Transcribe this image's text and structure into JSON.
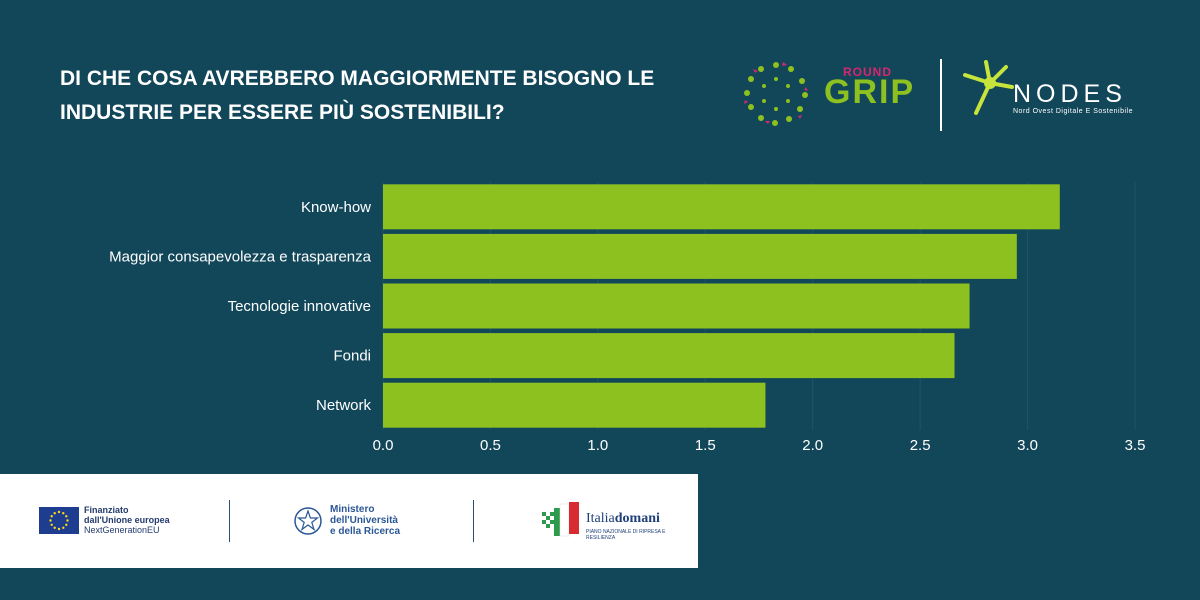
{
  "title": "Di che cosa avrebbero maggiormente bisogno le industrie per essere più sostenibili?",
  "logos": {
    "grip_round": "ROUND",
    "grip_word": "GRIP",
    "nodes_word": "NODES",
    "nodes_subtitle": "Nord Ovest Digitale E Sostenibile"
  },
  "footer": {
    "eu_line1": "Finanziato",
    "eu_line2": "dall'Unione europea",
    "eu_line3": "NextGenerationEU",
    "mur_line1": "Ministero",
    "mur_line2": "dell'Università",
    "mur_line3": "e della Ricerca",
    "italia_a": "Italia",
    "italia_b": "domani",
    "italia_sub": "PIANO NAZIONALE DI RIPRESA E RESILIENZA"
  },
  "colors": {
    "background": "#12475a",
    "bar": "#8dc11f",
    "text": "#ffffff"
  },
  "chart_data": {
    "type": "bar",
    "orientation": "horizontal",
    "categories": [
      "Know-how",
      "Maggior consapevolezza e trasparenza",
      "Tecnologie innovative",
      "Fondi",
      "Network"
    ],
    "values": [
      3.15,
      2.95,
      2.73,
      2.66,
      1.78
    ],
    "xlim": [
      0,
      3.5
    ],
    "xticks": [
      "0.0",
      "0.5",
      "1.0",
      "1.5",
      "2.0",
      "2.5",
      "3.0",
      "3.5"
    ],
    "xlabel": "",
    "ylabel": ""
  }
}
